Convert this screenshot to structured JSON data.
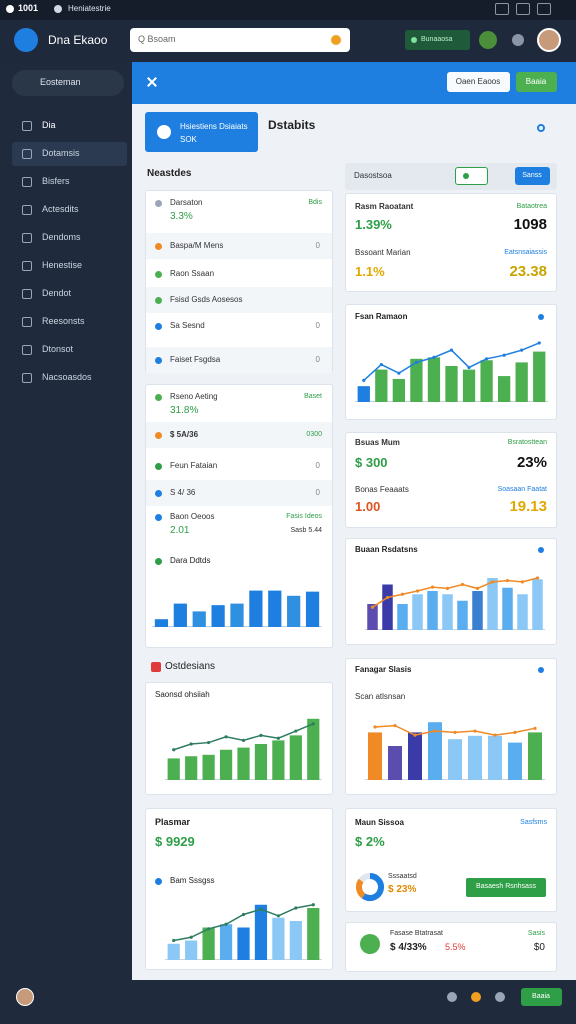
{
  "titlebar": {
    "app": "1001",
    "tab": "Heniatestrie"
  },
  "header": {
    "brand": "Dna Ekaoo",
    "search": "Q Bsoam",
    "action": "Bunaaosa"
  },
  "sidebar": {
    "search": "Eosteman",
    "items": [
      "Dia",
      "Dotamsis",
      "Bisfers",
      "Actesdits",
      "Dendoms",
      "Henestise",
      "Dendot",
      "Reesonsts",
      "Dtonsot",
      "Nacsoasdos"
    ]
  },
  "toolbar": {
    "secondary": "Oaen Eaoos",
    "primary": "Baaia"
  },
  "banner": {
    "title": "Hsiestiens Dsiaiats",
    "value": "SOK"
  },
  "page_title": "Dstabits",
  "left": {
    "heading": "Neastdes",
    "list1": [
      {
        "label": "Darsaton",
        "value": "3.3%",
        "note": "Bdis"
      },
      {
        "label": "Baspa/M Mens",
        "value": "0"
      },
      {
        "label": "Raon Ssaan"
      },
      {
        "label": "Fsisd Gsds Aosesos"
      },
      {
        "label": "Sa Sesnd",
        "value": "0"
      },
      {
        "label": "Faiset Fsgdsa",
        "value": "0"
      }
    ],
    "list2": [
      {
        "label": "Rseno Aeting",
        "value": "31.8%",
        "note": "Baset"
      },
      {
        "label": "$ 5A/36",
        "note": "0300"
      },
      {
        "label": "Feun Fataian",
        "value": "0"
      },
      {
        "label": "S 4/ 36",
        "value": "0"
      },
      {
        "label": "Baon Oeoos",
        "value": "2.01",
        "note": "Fasis Ideos",
        "note2": "Sasb 5.44"
      }
    ],
    "section": "Ostdesians",
    "summary": {
      "title": "Plasmar",
      "value": "$ 9929"
    }
  },
  "right": {
    "bar": {
      "title": "Dasostsoa",
      "button": "Sanss"
    },
    "stats1": [
      {
        "label": "Rasm Raoatant",
        "value": "1.39%",
        "note": "Bataotrea",
        "big": "1098"
      },
      {
        "label": "Bssoant Marian",
        "value": "1.1%",
        "note": "Eatsnsaiassis",
        "big": "23.38"
      }
    ],
    "stats2": [
      {
        "label": "Bsuas Mum",
        "value": "$ 300",
        "note": "Bsratosttean",
        "big": "23%"
      },
      {
        "label": "Bonas Feaaats",
        "value": "1.00",
        "note": "Soasaan Faatat",
        "big": "19.13"
      }
    ],
    "goal": {
      "title": "Maun Sissoa",
      "note": "Sasfsms",
      "value": "$ 2%",
      "label": "Sssaatsd",
      "share": "$ 23%",
      "button": "Basaesh Rsnhsass",
      "donut": {
        "values": [
          60,
          25,
          15
        ],
        "colors": [
          "#1e7fe0",
          "#f08a24",
          "#dfe6ee"
        ]
      }
    },
    "footer_card": {
      "label": "Fasase Btatrasat",
      "value": "$ 4/33%",
      "change": "5.5%",
      "note": "Sasis",
      "total": "$0"
    }
  },
  "charts": [
    {
      "title": "Fsan Ramaon",
      "ylim": [
        0,
        100
      ],
      "values": [
        22,
        45,
        32,
        60,
        62,
        50,
        45,
        58,
        36,
        55,
        70
      ],
      "colors": [
        "#1e7fe0",
        "#4caf50",
        "#4caf50",
        "#4caf50",
        "#4caf50",
        "#4caf50",
        "#4caf50",
        "#4caf50",
        "#4caf50",
        "#4caf50",
        "#4caf50"
      ],
      "line": [
        30,
        52,
        40,
        55,
        62,
        72,
        48,
        60,
        65,
        72,
        82
      ],
      "line_color": "#1e7fe0"
    },
    {
      "title": "Buaan Rsdatsns",
      "ylim": [
        0,
        100
      ],
      "values": [
        40,
        70,
        40,
        55,
        60,
        55,
        45,
        60,
        80,
        65,
        55,
        78
      ],
      "colors": [
        "#5b4db0",
        "#3a3aa8",
        "#5aaef0",
        "#8cc8f5",
        "#5aaef0",
        "#8cc8f5",
        "#5aaef0",
        "#3a7fd0",
        "#8cc8f5",
        "#5aaef0",
        "#8cc8f5",
        "#8cc8f5"
      ],
      "line": [
        35,
        50,
        55,
        60,
        66,
        64,
        70,
        64,
        74,
        76,
        74,
        80
      ],
      "line_color": "#f08a24"
    },
    {
      "title": "Fanagar Slasis",
      "subtitle": "Scan atlsnsan",
      "ylim": [
        0,
        100
      ],
      "values": [
        70,
        50,
        70,
        85,
        60,
        65,
        65,
        55,
        70
      ],
      "colors": [
        "#f08a24",
        "#5b4db0",
        "#3a3aa8",
        "#5aaef0",
        "#8cc8f5",
        "#8cc8f5",
        "#8cc8f5",
        "#5aaef0",
        "#4caf50"
      ],
      "line": [
        78,
        80,
        66,
        72,
        70,
        72,
        66,
        70,
        76
      ],
      "line_color": "#f08a24"
    },
    {
      "title": "Dara Ddtds",
      "ylim": [
        0,
        100
      ],
      "values": [
        15,
        45,
        30,
        42,
        45,
        70,
        70,
        60,
        68
      ],
      "colors": [
        "#1e7fe0",
        "#1e7fe0",
        "#2f8fe0",
        "#1e7fe0",
        "#2f8fe0",
        "#1e7fe0",
        "#1e7fe0",
        "#2f8fe0",
        "#1e7fe0"
      ]
    },
    {
      "title": "Saonsd ohsiiah",
      "ylim": [
        0,
        100
      ],
      "values": [
        30,
        33,
        35,
        42,
        45,
        50,
        55,
        62,
        85
      ],
      "colors": [
        "#4caf50",
        "#4caf50",
        "#4caf50",
        "#4caf50",
        "#4caf50",
        "#4caf50",
        "#4caf50",
        "#4caf50",
        "#4caf50"
      ],
      "line": [
        42,
        50,
        52,
        60,
        55,
        62,
        58,
        68,
        78
      ],
      "line_color": "#2e7d60"
    },
    {
      "title": "Bam Sssgss",
      "ylim": [
        0,
        100
      ],
      "values": [
        25,
        30,
        50,
        55,
        50,
        85,
        65,
        60,
        80
      ],
      "colors": [
        "#8cc8f5",
        "#8cc8f5",
        "#4caf50",
        "#5aaef0",
        "#1e7fe0",
        "#1e7fe0",
        "#8cc8f5",
        "#8cc8f5",
        "#4caf50"
      ],
      "line": [
        30,
        35,
        48,
        55,
        70,
        78,
        68,
        80,
        85
      ],
      "line_color": "#2e7d60"
    }
  ]
}
